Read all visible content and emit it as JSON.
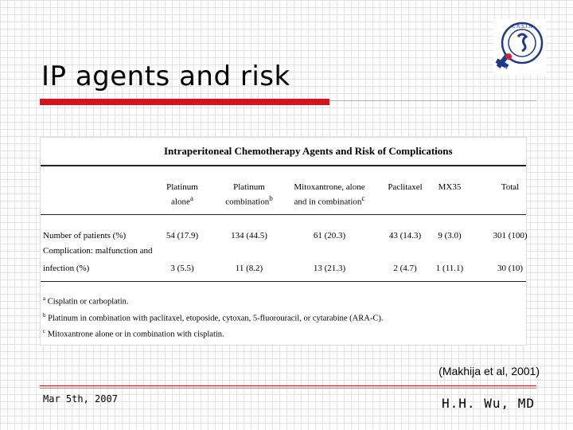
{
  "slide": {
    "title": "IP agents and risk",
    "citation": "(Makhija et al, 2001)",
    "date": "Mar 5th, 2007",
    "author": "H.H. Wu, MD",
    "accent_color": "#d4141d",
    "logo": {
      "icon": "gender-symbol-logo-icon",
      "ring_text": "C.R.S.I.N",
      "side_text": "CCC"
    }
  },
  "table": {
    "caption": "Intraperitoneal Chemotherapy Agents and Risk of Complications",
    "columns": [
      {
        "line1": "Platinum",
        "line2": "alone",
        "sup": "a"
      },
      {
        "line1": "Platinum",
        "line2": "combination",
        "sup": "b"
      },
      {
        "line1": "Mitoxantrone, alone",
        "line2": "and in combination",
        "sup": "c"
      },
      {
        "line1": "",
        "line2": "Paclitaxel",
        "sup": ""
      },
      {
        "line1": "",
        "line2": "MX35",
        "sup": ""
      },
      {
        "line1": "",
        "line2": "Total",
        "sup": ""
      }
    ],
    "rows": [
      {
        "label": "Number of patients (%)",
        "values": [
          "54 (17.9)",
          "134 (44.5)",
          "61 (20.3)",
          "43 (14.3)",
          "9 (3.0)",
          "301 (100)"
        ]
      },
      {
        "label": "Complication: malfunction and",
        "label2": "infection (%)",
        "values": [
          "3 (5.5)",
          "11 (8.2)",
          "13 (21.3)",
          "2 (4.7)",
          "1 (11.1)",
          "30 (10)"
        ]
      }
    ],
    "footnotes": [
      {
        "mark": "a",
        "text": "Cisplatin or carboplatin."
      },
      {
        "mark": "b",
        "text": "Platinum in combination with paclitaxel, etoposide, cytoxan, 5-fluorouracil, or cytarabine (ARA-C)."
      },
      {
        "mark": "c",
        "text": "Mitoxantrone alone or in combination with cisplatin."
      }
    ]
  }
}
